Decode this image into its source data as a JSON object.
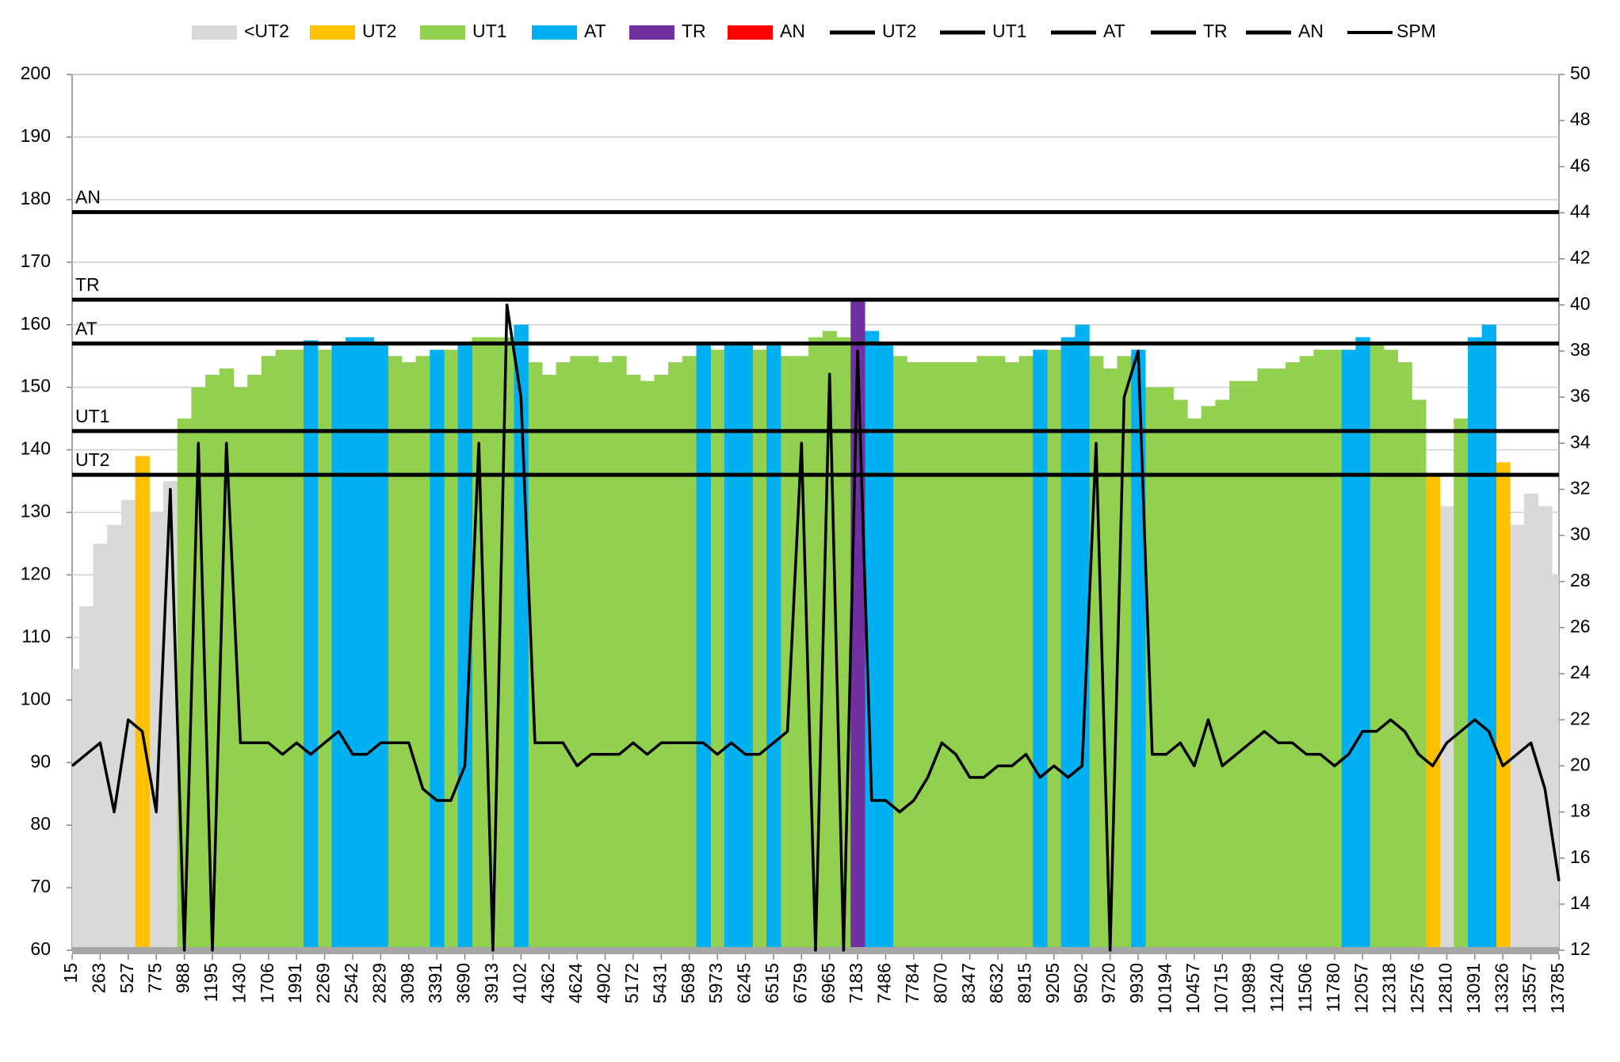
{
  "chart_data": {
    "type": "bar",
    "categories": [
      "15",
      null,
      "263",
      null,
      "527",
      null,
      "775",
      null,
      "988",
      null,
      "1195",
      null,
      "1430",
      null,
      "1706",
      null,
      "1991",
      null,
      "2269",
      null,
      "2542",
      null,
      "2829",
      null,
      "3098",
      null,
      "3391",
      null,
      "3690",
      null,
      "3913",
      null,
      "4102",
      null,
      "4362",
      null,
      "4624",
      null,
      "4902",
      null,
      "5172",
      null,
      "5431",
      null,
      "5698",
      null,
      "5973",
      null,
      "6245",
      null,
      "6515",
      null,
      "6759",
      null,
      "6965",
      null,
      "7183",
      null,
      "7486",
      null,
      "7784",
      null,
      "8070",
      null,
      "8347",
      null,
      "8632",
      null,
      "8915",
      null,
      "9205",
      null,
      "9502",
      null,
      "9720",
      null,
      "9930",
      null,
      "10194",
      null,
      "10457",
      null,
      "10715",
      null,
      "10989",
      null,
      "11240",
      null,
      "11506",
      null,
      "11780",
      null,
      "12057",
      null,
      "12318",
      null,
      "12576",
      null,
      "12810",
      null,
      "13091",
      null,
      "13326",
      null,
      "13557",
      null,
      "13785"
    ],
    "series": [
      {
        "name": "<UT2",
        "color": "#d9d9d9",
        "values": [
          105,
          115,
          125,
          128,
          132,
          null,
          130,
          135,
          null,
          null,
          null,
          null,
          null,
          null,
          null,
          null,
          null,
          null,
          null,
          null,
          null,
          null,
          null,
          null,
          null,
          null,
          null,
          null,
          null,
          null,
          null,
          null,
          null,
          null,
          null,
          null,
          null,
          null,
          null,
          null,
          null,
          null,
          null,
          null,
          null,
          null,
          null,
          null,
          null,
          null,
          null,
          null,
          null,
          null,
          null,
          null,
          null,
          null,
          null,
          null,
          null,
          null,
          null,
          null,
          null,
          null,
          null,
          null,
          null,
          null,
          null,
          null,
          null,
          null,
          null,
          null,
          null,
          null,
          null,
          null,
          null,
          null,
          null,
          null,
          null,
          null,
          null,
          null,
          null,
          null,
          null,
          null,
          null,
          null,
          null,
          null,
          null,
          null,
          131,
          null,
          null,
          null,
          null,
          128,
          133,
          131,
          120
        ]
      },
      {
        "name": "UT2",
        "color": "#ffc000",
        "values": [
          null,
          null,
          null,
          null,
          null,
          139,
          null,
          null,
          null,
          null,
          null,
          null,
          null,
          null,
          null,
          null,
          null,
          null,
          null,
          null,
          null,
          null,
          null,
          null,
          null,
          null,
          null,
          null,
          null,
          null,
          null,
          null,
          null,
          null,
          null,
          null,
          null,
          null,
          null,
          null,
          null,
          null,
          null,
          null,
          null,
          null,
          null,
          null,
          null,
          null,
          null,
          null,
          null,
          null,
          null,
          null,
          null,
          null,
          null,
          null,
          null,
          null,
          null,
          null,
          null,
          null,
          null,
          null,
          null,
          null,
          null,
          null,
          null,
          null,
          null,
          null,
          null,
          null,
          null,
          null,
          null,
          null,
          null,
          null,
          null,
          null,
          null,
          null,
          null,
          null,
          null,
          null,
          null,
          null,
          null,
          null,
          null,
          136,
          null,
          null,
          null,
          null,
          138,
          null,
          null,
          null,
          null
        ]
      },
      {
        "name": "UT1",
        "color": "#92d050",
        "values": [
          null,
          null,
          null,
          null,
          null,
          null,
          null,
          null,
          145,
          150,
          152,
          153,
          150,
          152,
          155,
          156,
          156,
          null,
          156,
          null,
          null,
          null,
          null,
          155,
          154,
          155,
          null,
          156,
          null,
          158,
          158,
          158,
          null,
          154,
          152,
          154,
          155,
          155,
          154,
          155,
          152,
          151,
          152,
          154,
          155,
          null,
          156,
          null,
          null,
          156,
          null,
          155,
          155,
          158,
          159,
          158,
          null,
          null,
          null,
          155,
          154,
          154,
          154,
          154,
          154,
          155,
          155,
          154,
          155,
          null,
          156,
          null,
          null,
          155,
          153,
          155,
          null,
          150,
          150,
          148,
          145,
          147,
          148,
          151,
          151,
          153,
          153,
          154,
          155,
          156,
          156,
          null,
          null,
          157,
          156,
          154,
          148,
          null,
          null,
          145,
          null,
          null,
          null,
          null,
          null,
          null,
          null
        ]
      },
      {
        "name": "AT",
        "color": "#00b0f0",
        "values": [
          null,
          null,
          null,
          null,
          null,
          null,
          null,
          null,
          null,
          null,
          null,
          null,
          null,
          null,
          null,
          null,
          null,
          157.5,
          null,
          157,
          158,
          158,
          157,
          null,
          null,
          null,
          156,
          null,
          157,
          null,
          null,
          null,
          160,
          null,
          null,
          null,
          null,
          null,
          null,
          null,
          null,
          null,
          null,
          null,
          null,
          157,
          null,
          157,
          157,
          null,
          157,
          null,
          null,
          null,
          null,
          null,
          null,
          159,
          157,
          null,
          null,
          null,
          null,
          null,
          null,
          null,
          null,
          null,
          null,
          156,
          null,
          158,
          160,
          null,
          null,
          null,
          156,
          null,
          null,
          null,
          null,
          null,
          null,
          null,
          null,
          null,
          null,
          null,
          null,
          null,
          null,
          156,
          158,
          null,
          null,
          null,
          null,
          null,
          null,
          null,
          158,
          160,
          null,
          null,
          null,
          null,
          null
        ]
      },
      {
        "name": "TR",
        "color": "#7030a0",
        "values": [
          null,
          null,
          null,
          null,
          null,
          null,
          null,
          null,
          null,
          null,
          null,
          null,
          null,
          null,
          null,
          null,
          null,
          null,
          null,
          null,
          null,
          null,
          null,
          null,
          null,
          null,
          null,
          null,
          null,
          null,
          null,
          null,
          null,
          null,
          null,
          null,
          null,
          null,
          null,
          null,
          null,
          null,
          null,
          null,
          null,
          null,
          null,
          null,
          null,
          null,
          null,
          null,
          null,
          null,
          null,
          null,
          164,
          null,
          null,
          null,
          null,
          null,
          null,
          null,
          null,
          null,
          null,
          null,
          null,
          null,
          null,
          null,
          null,
          null,
          null,
          null,
          null,
          null,
          null,
          null,
          null,
          null,
          null,
          null,
          null,
          null,
          null,
          null,
          null,
          null,
          null,
          null,
          null,
          null,
          null,
          null,
          null,
          null,
          null,
          null,
          null,
          null,
          null,
          null,
          null,
          null,
          null
        ]
      },
      {
        "name": "AN",
        "color": "#ff0000",
        "values": [
          null,
          null,
          null,
          null,
          null,
          null,
          null,
          null,
          null,
          null,
          null,
          null,
          null,
          null,
          null,
          null,
          null,
          null,
          null,
          null,
          null,
          null,
          null,
          null,
          null,
          null,
          null,
          null,
          null,
          null,
          null,
          null,
          null,
          null,
          null,
          null,
          null,
          null,
          null,
          null,
          null,
          null,
          null,
          null,
          null,
          null,
          null,
          null,
          null,
          null,
          null,
          null,
          null,
          null,
          null,
          null,
          null,
          null,
          null,
          null,
          null,
          null,
          null,
          null,
          null,
          null,
          null,
          null,
          null,
          null,
          null,
          null,
          null,
          null,
          null,
          null,
          null,
          null,
          null,
          null,
          null,
          null,
          null,
          null,
          null,
          null,
          null,
          null,
          null,
          null,
          null,
          null,
          null,
          null,
          null,
          null,
          null,
          null,
          null,
          null,
          null,
          null,
          null,
          null,
          null,
          null,
          null
        ]
      }
    ],
    "lines": [
      {
        "name": "UT2",
        "color": "#000000",
        "value": 136
      },
      {
        "name": "UT1",
        "color": "#000000",
        "value": 143
      },
      {
        "name": "AT",
        "color": "#000000",
        "value": 157
      },
      {
        "name": "TR",
        "color": "#000000",
        "value": 164
      },
      {
        "name": "AN",
        "color": "#000000",
        "value": 178
      }
    ],
    "spm": {
      "name": "SPM",
      "color": "#000000",
      "axis": "y2",
      "values": [
        20,
        20.5,
        21,
        18,
        22,
        21.5,
        18,
        32,
        12,
        34,
        12,
        34,
        21,
        21,
        21,
        20.5,
        21,
        20.5,
        21,
        21.5,
        20.5,
        20.5,
        21,
        21,
        21,
        19,
        18.5,
        18.5,
        20,
        34,
        12,
        40,
        36,
        21,
        21,
        21,
        20,
        20.5,
        20.5,
        20.5,
        21,
        20.5,
        21,
        21,
        21,
        21,
        20.5,
        21,
        20.5,
        20.5,
        21,
        21.5,
        34,
        12,
        37,
        12,
        38,
        18.5,
        18.5,
        18,
        18.5,
        19.5,
        21,
        20.5,
        19.5,
        19.5,
        20,
        20,
        20.5,
        19.5,
        20,
        19.5,
        20,
        34,
        12,
        36,
        38,
        20.5,
        20.5,
        21,
        20,
        22,
        20,
        20.5,
        21,
        21.5,
        21,
        21,
        20.5,
        20.5,
        20,
        20.5,
        21.5,
        21.5,
        22,
        21.5,
        20.5,
        20,
        21,
        21.5,
        22,
        21.5,
        20,
        20.5,
        21,
        19,
        15
      ]
    },
    "ylim": [
      60,
      200
    ],
    "yticks": [
      60,
      70,
      80,
      90,
      100,
      110,
      120,
      130,
      140,
      150,
      160,
      170,
      180,
      190,
      200
    ],
    "y2lim": [
      12,
      50
    ],
    "y2ticks": [
      12,
      14,
      16,
      18,
      20,
      22,
      24,
      26,
      28,
      30,
      32,
      34,
      36,
      38,
      40,
      42,
      44,
      46,
      48,
      50
    ],
    "grid": true
  }
}
